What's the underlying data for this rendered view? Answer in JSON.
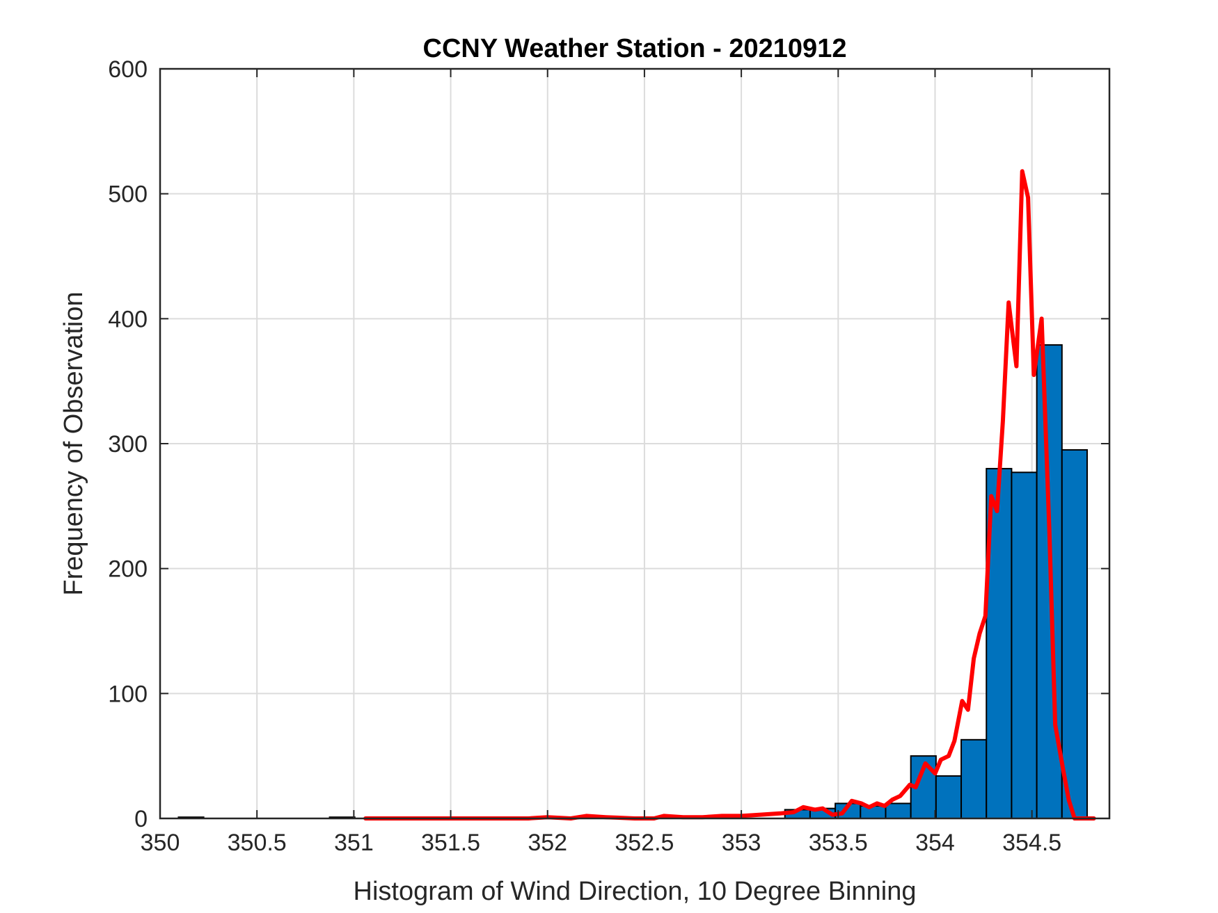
{
  "chart_data": {
    "type": "bar",
    "title": "CCNY Weather Station - 20210912",
    "xlabel": "Histogram of Wind Direction, 10 Degree Binning",
    "ylabel": "Frequency of Observation",
    "xlim": [
      350,
      354.9
    ],
    "ylim": [
      0,
      600
    ],
    "xticks": [
      350,
      350.5,
      351,
      351.5,
      352,
      352.5,
      353,
      353.5,
      354,
      354.5
    ],
    "xtick_labels": [
      "350",
      "350.5",
      "351",
      "351.5",
      "352",
      "352.5",
      "353",
      "353.5",
      "354",
      "354.5"
    ],
    "yticks": [
      0,
      100,
      200,
      300,
      400,
      500,
      600
    ],
    "ytick_labels": [
      "0",
      "100",
      "200",
      "300",
      "400",
      "500",
      "600"
    ],
    "grid": true,
    "bin_width": 0.13,
    "colors": {
      "bars": "#0072BD",
      "bar_edge": "#000000",
      "line": "#FF0000",
      "grid": "#DCDCDC",
      "axes": "#262626"
    },
    "series": [
      {
        "type": "bar",
        "bin_centers": [
          350.16,
          350.94,
          353.29,
          353.42,
          353.55,
          353.68,
          353.81,
          353.94,
          354.07,
          354.2,
          354.33,
          354.46,
          354.59,
          354.72
        ],
        "values": [
          1,
          1,
          7,
          8,
          12,
          10,
          12,
          50,
          34,
          63,
          280,
          277,
          379,
          295
        ]
      },
      {
        "type": "line",
        "x": [
          351.06,
          351.3,
          351.6,
          351.9,
          352.0,
          352.12,
          352.2,
          352.3,
          352.45,
          352.55,
          352.6,
          352.7,
          352.8,
          352.9,
          353.0,
          353.1,
          353.2,
          353.27,
          353.32,
          353.38,
          353.42,
          353.47,
          353.52,
          353.57,
          353.62,
          353.66,
          353.7,
          353.74,
          353.78,
          353.82,
          353.87,
          353.9,
          353.95,
          354.0,
          354.03,
          354.07,
          354.1,
          354.14,
          354.17,
          354.2,
          354.23,
          354.26,
          354.29,
          354.32,
          354.35,
          354.38,
          354.42,
          354.45,
          354.48,
          354.51,
          354.55,
          354.59,
          354.62,
          354.66,
          354.69,
          354.72,
          354.75,
          354.78,
          354.82
        ],
        "values": [
          0,
          0,
          0,
          0,
          1,
          0,
          2,
          1,
          0,
          0,
          2,
          1,
          1,
          2,
          2,
          3,
          4,
          5,
          9,
          7,
          8,
          3,
          4,
          14,
          12,
          9,
          12,
          10,
          15,
          18,
          27,
          25,
          44,
          36,
          47,
          50,
          62,
          94,
          87,
          128,
          148,
          162,
          258,
          246,
          318,
          413,
          362,
          518,
          497,
          355,
          400,
          230,
          75,
          40,
          15,
          0,
          0,
          0,
          0
        ]
      }
    ]
  }
}
